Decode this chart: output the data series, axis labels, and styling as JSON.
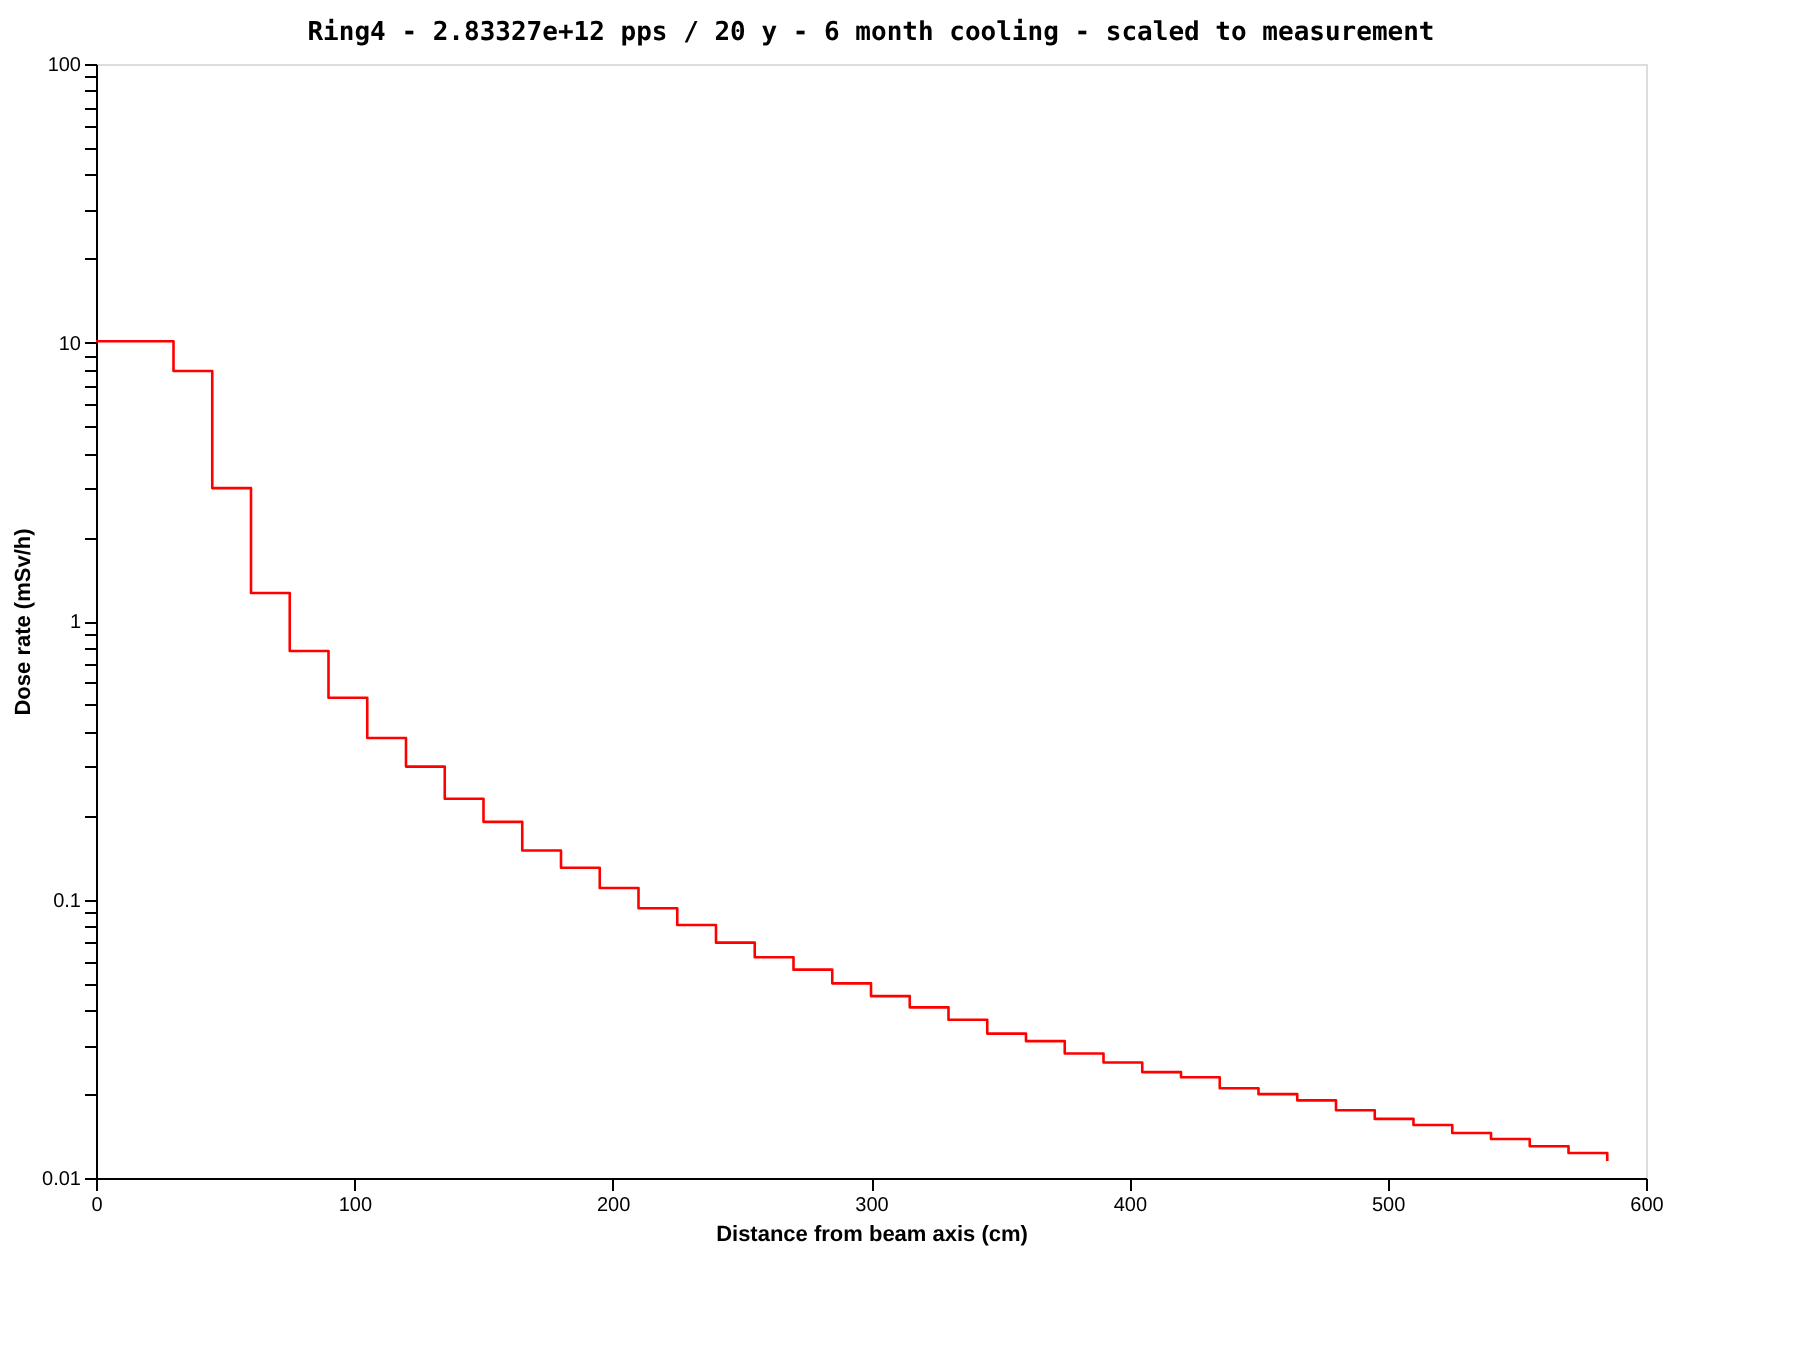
{
  "chart_data": {
    "type": "step",
    "title": "Ring4 - 2.83327e+12 pps / 20 y - 6 month cooling - scaled to measurement",
    "xlabel": "Distance from beam axis (cm)",
    "ylabel": "Dose rate (mSv/h)",
    "x": [
      0,
      30,
      45,
      60,
      75,
      90,
      105,
      120,
      135,
      150,
      165,
      180,
      195,
      210,
      225,
      240,
      255,
      270,
      285,
      300,
      315,
      330,
      345,
      360,
      375,
      390,
      405,
      420,
      435,
      450,
      465,
      480,
      495,
      510,
      525,
      540,
      555,
      570,
      585
    ],
    "series": [
      {
        "color": "#ff0000",
        "values": [
          10.1,
          7.9,
          3.0,
          1.26,
          0.78,
          0.53,
          0.38,
          0.3,
          0.23,
          0.19,
          0.15,
          0.13,
          0.11,
          0.093,
          0.081,
          0.07,
          0.062,
          0.056,
          0.05,
          0.045,
          0.041,
          0.037,
          0.033,
          0.031,
          0.028,
          0.026,
          0.024,
          0.023,
          0.021,
          0.02,
          0.019,
          0.0175,
          0.0163,
          0.0155,
          0.0145,
          0.0138,
          0.013,
          0.0123,
          0.0115
        ]
      }
    ],
    "xlim": [
      0,
      600
    ],
    "xticks": [
      0,
      100,
      200,
      300,
      400,
      500,
      600
    ],
    "ylim": [
      0.01,
      100
    ],
    "log": "y",
    "yticks": [
      0.01,
      {
        "value": 0.02,
        "label": null
      },
      {
        "value": 0.03,
        "label": null
      },
      {
        "value": 0.04,
        "label": null
      },
      {
        "value": 0.05,
        "label": null
      },
      {
        "value": 0.06,
        "label": null
      },
      {
        "value": 0.07,
        "label": null
      },
      {
        "value": 0.08,
        "label": null
      },
      {
        "value": 0.09,
        "label": null
      },
      0.1,
      {
        "value": 0.2,
        "label": null
      },
      {
        "value": 0.3,
        "label": null
      },
      {
        "value": 0.4,
        "label": null
      },
      {
        "value": 0.5,
        "label": null
      },
      {
        "value": 0.6,
        "label": null
      },
      {
        "value": 0.7,
        "label": null
      },
      {
        "value": 0.8,
        "label": null
      },
      {
        "value": 0.9,
        "label": null
      },
      1,
      {
        "value": 2,
        "label": null
      },
      {
        "value": 3,
        "label": null
      },
      {
        "value": 4,
        "label": null
      },
      {
        "value": 5,
        "label": null
      },
      {
        "value": 6,
        "label": null
      },
      {
        "value": 7,
        "label": null
      },
      {
        "value": 8,
        "label": null
      },
      {
        "value": 9,
        "label": null
      },
      10,
      {
        "value": 20,
        "label": null
      },
      {
        "value": 30,
        "label": null
      },
      {
        "value": 40,
        "label": null
      },
      {
        "value": 50,
        "label": null
      },
      {
        "value": 60,
        "label": null
      },
      {
        "value": 70,
        "label": null
      },
      {
        "value": 80,
        "label": null
      },
      {
        "value": 90,
        "label": null
      },
      100
    ],
    "grid": false,
    "marker": "none",
    "line_style": "solid"
  }
}
